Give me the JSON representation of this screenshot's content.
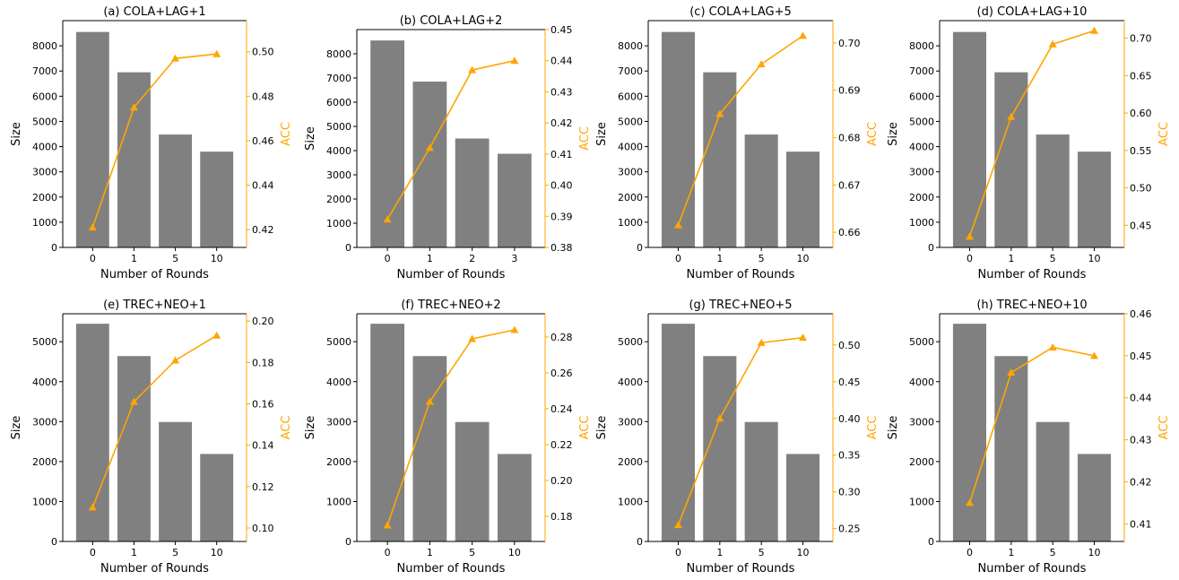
{
  "chart_data": [
    {
      "type": "bar+line",
      "title": "(a) COLA+LAG+1",
      "xlabel": "Number of Rounds",
      "ylabel": "Size",
      "y2label": "ACC",
      "categories": [
        "0",
        "1",
        "5",
        "10"
      ],
      "size": {
        "values": [
          8550,
          6950,
          4480,
          3800
        ],
        "ylim": [
          0,
          9000
        ],
        "ticks": [
          0,
          1000,
          2000,
          3000,
          4000,
          5000,
          6000,
          7000,
          8000
        ],
        "tick_labels": [
          "0",
          "1000",
          "2000",
          "3000",
          "4000",
          "5000",
          "6000",
          "7000",
          "8000"
        ]
      },
      "acc": {
        "values": [
          0.421,
          0.475,
          0.497,
          0.499
        ],
        "ylim": [
          0.412,
          0.514
        ],
        "ticks": [
          0.42,
          0.44,
          0.46,
          0.48,
          0.5
        ],
        "tick_labels": [
          "0.42",
          "0.44",
          "0.46",
          "0.48",
          "0.50"
        ]
      }
    },
    {
      "type": "bar+line",
      "title": "(b) COLA+LAG+2",
      "xlabel": "Number of Rounds",
      "ylabel": "Size",
      "y2label": "ACC",
      "categories": [
        "0",
        "1",
        "2",
        "3"
      ],
      "size": {
        "values": [
          8550,
          6850,
          4500,
          3870
        ],
        "ylim": [
          0,
          9000
        ],
        "ticks": [
          0,
          1000,
          2000,
          3000,
          4000,
          5000,
          6000,
          7000,
          8000
        ],
        "tick_labels": [
          "0",
          "1000",
          "2000",
          "3000",
          "4000",
          "5000",
          "6000",
          "7000",
          "8000"
        ]
      },
      "acc": {
        "values": [
          0.389,
          0.412,
          0.437,
          0.44
        ],
        "ylim": [
          0.38,
          0.45
        ],
        "ticks": [
          0.38,
          0.39,
          0.4,
          0.41,
          0.42,
          0.43,
          0.44,
          0.45
        ],
        "tick_labels": [
          "0.38",
          "0.39",
          "0.40",
          "0.41",
          "0.42",
          "0.43",
          "0.44",
          "0.45"
        ]
      }
    },
    {
      "type": "bar+line",
      "title": "(c) COLA+LAG+5",
      "xlabel": "Number of Rounds",
      "ylabel": "Size",
      "y2label": "ACC",
      "categories": [
        "0",
        "1",
        "5",
        "10"
      ],
      "size": {
        "values": [
          8550,
          6950,
          4480,
          3800
        ],
        "ylim": [
          0,
          9000
        ],
        "ticks": [
          0,
          1000,
          2000,
          3000,
          4000,
          5000,
          6000,
          7000,
          8000
        ],
        "tick_labels": [
          "0",
          "1000",
          "2000",
          "3000",
          "4000",
          "5000",
          "6000",
          "7000",
          "8000"
        ]
      },
      "acc": {
        "values": [
          0.6615,
          0.685,
          0.6955,
          0.7015
        ],
        "ylim": [
          0.6568,
          0.7047
        ],
        "ticks": [
          0.66,
          0.67,
          0.68,
          0.69,
          0.7
        ],
        "tick_labels": [
          "0.66",
          "0.67",
          "0.68",
          "0.69",
          "0.70"
        ]
      }
    },
    {
      "type": "bar+line",
      "title": "(d) COLA+LAG+10",
      "xlabel": "Number of Rounds",
      "ylabel": "Size",
      "y2label": "ACC",
      "categories": [
        "0",
        "1",
        "5",
        "10"
      ],
      "size": {
        "values": [
          8550,
          6950,
          4480,
          3800
        ],
        "ylim": [
          0,
          9000
        ],
        "ticks": [
          0,
          1000,
          2000,
          3000,
          4000,
          5000,
          6000,
          7000,
          8000
        ],
        "tick_labels": [
          "0",
          "1000",
          "2000",
          "3000",
          "4000",
          "5000",
          "6000",
          "7000",
          "8000"
        ]
      },
      "acc": {
        "values": [
          0.435,
          0.595,
          0.692,
          0.71
        ],
        "ylim": [
          0.4205,
          0.7235
        ],
        "ticks": [
          0.45,
          0.5,
          0.55,
          0.6,
          0.65,
          0.7
        ],
        "tick_labels": [
          "0.45",
          "0.50",
          "0.55",
          "0.60",
          "0.65",
          "0.70"
        ]
      }
    },
    {
      "type": "bar+line",
      "title": "(e) TREC+NEO+1",
      "xlabel": "Number of Rounds",
      "ylabel": "Size",
      "y2label": "ACC",
      "categories": [
        "0",
        "1",
        "5",
        "10"
      ],
      "size": {
        "values": [
          5450,
          4640,
          2990,
          2190
        ],
        "ylim": [
          0,
          5700
        ],
        "ticks": [
          0,
          1000,
          2000,
          3000,
          4000,
          5000
        ],
        "tick_labels": [
          "0",
          "1000",
          "2000",
          "3000",
          "4000",
          "5000"
        ]
      },
      "acc": {
        "values": [
          0.11,
          0.161,
          0.181,
          0.193
        ],
        "ylim": [
          0.0935,
          0.2035
        ],
        "ticks": [
          0.1,
          0.12,
          0.14,
          0.16,
          0.18,
          0.2
        ],
        "tick_labels": [
          "0.10",
          "0.12",
          "0.14",
          "0.16",
          "0.18",
          "0.20"
        ]
      }
    },
    {
      "type": "bar+line",
      "title": "(f) TREC+NEO+2",
      "xlabel": "Number of Rounds",
      "ylabel": "Size",
      "y2label": "ACC",
      "categories": [
        "0",
        "1",
        "5",
        "10"
      ],
      "size": {
        "values": [
          5450,
          4640,
          2990,
          2190
        ],
        "ylim": [
          0,
          5700
        ],
        "ticks": [
          0,
          1000,
          2000,
          3000,
          4000,
          5000
        ],
        "tick_labels": [
          "0",
          "1000",
          "2000",
          "3000",
          "4000",
          "5000"
        ]
      },
      "acc": {
        "values": [
          0.175,
          0.244,
          0.279,
          0.284
        ],
        "ylim": [
          0.166,
          0.293
        ],
        "ticks": [
          0.18,
          0.2,
          0.22,
          0.24,
          0.26,
          0.28
        ],
        "tick_labels": [
          "0.18",
          "0.20",
          "0.22",
          "0.24",
          "0.26",
          "0.28"
        ]
      }
    },
    {
      "type": "bar+line",
      "title": "(g) TREC+NEO+5",
      "xlabel": "Number of Rounds",
      "ylabel": "Size",
      "y2label": "ACC",
      "categories": [
        "0",
        "1",
        "5",
        "10"
      ],
      "size": {
        "values": [
          5450,
          4640,
          2990,
          2190
        ],
        "ylim": [
          0,
          5700
        ],
        "ticks": [
          0,
          1000,
          2000,
          3000,
          4000,
          5000
        ],
        "tick_labels": [
          "0",
          "1000",
          "2000",
          "3000",
          "4000",
          "5000"
        ]
      },
      "acc": {
        "values": [
          0.255,
          0.4,
          0.503,
          0.51
        ],
        "ylim": [
          0.2325,
          0.5425
        ],
        "ticks": [
          0.25,
          0.3,
          0.35,
          0.4,
          0.45,
          0.5
        ],
        "tick_labels": [
          "0.25",
          "0.30",
          "0.35",
          "0.40",
          "0.45",
          "0.50"
        ]
      }
    },
    {
      "type": "bar+line",
      "title": "(h) TREC+NEO+10",
      "xlabel": "Number of Rounds",
      "ylabel": "Size",
      "y2label": "ACC",
      "categories": [
        "0",
        "1",
        "5",
        "10"
      ],
      "size": {
        "values": [
          5450,
          4640,
          2990,
          2190
        ],
        "ylim": [
          0,
          5700
        ],
        "ticks": [
          0,
          1000,
          2000,
          3000,
          4000,
          5000
        ],
        "tick_labels": [
          "0",
          "1000",
          "2000",
          "3000",
          "4000",
          "5000"
        ]
      },
      "acc": {
        "values": [
          0.415,
          0.446,
          0.452,
          0.45
        ],
        "ylim": [
          0.4058,
          0.46
        ],
        "ticks": [
          0.41,
          0.42,
          0.43,
          0.44,
          0.45,
          0.46
        ],
        "tick_labels": [
          "0.41",
          "0.42",
          "0.43",
          "0.44",
          "0.45",
          "0.46"
        ]
      }
    }
  ]
}
